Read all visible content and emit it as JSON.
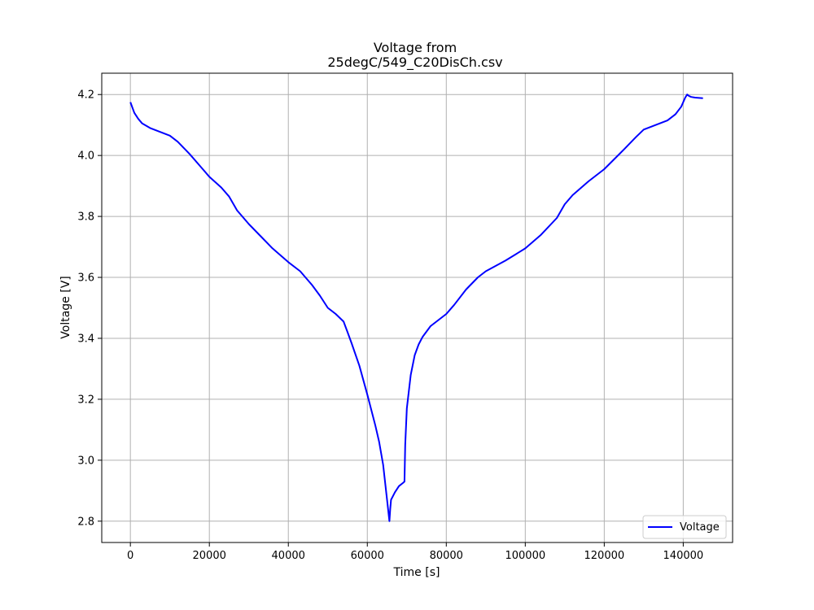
{
  "chart_data": {
    "type": "line",
    "title_line1": "Voltage from",
    "title_line2": "25degC/549_C20DisCh.csv",
    "xlabel": "Time [s]",
    "ylabel": "Voltage [V]",
    "xlim": [
      -7250,
      152500
    ],
    "ylim": [
      2.73,
      4.27
    ],
    "xticks": [
      0,
      20000,
      40000,
      60000,
      80000,
      100000,
      120000,
      140000
    ],
    "xtick_labels": [
      "0",
      "20000",
      "40000",
      "60000",
      "80000",
      "100000",
      "120000",
      "140000"
    ],
    "yticks": [
      2.8,
      3.0,
      3.2,
      3.4,
      3.6,
      3.8,
      4.0,
      4.2
    ],
    "ytick_labels": [
      "2.8",
      "3.0",
      "3.2",
      "3.4",
      "3.6",
      "3.8",
      "4.0",
      "4.2"
    ],
    "grid": true,
    "legend_position": "lower right",
    "series": [
      {
        "name": "Voltage",
        "color": "#0000ff",
        "x": [
          0,
          1000,
          2000,
          3000,
          5000,
          8000,
          10000,
          12000,
          15000,
          18000,
          20000,
          23000,
          25000,
          27000,
          30000,
          33000,
          36000,
          40000,
          43000,
          46000,
          48000,
          50000,
          52000,
          54000,
          55000,
          56000,
          58000,
          60000,
          62000,
          63000,
          64000,
          65000,
          65600,
          65800,
          66000,
          67000,
          68000,
          69000,
          69400,
          69600,
          70000,
          71000,
          72000,
          73000,
          74000,
          76000,
          80000,
          82000,
          85000,
          88000,
          90000,
          95000,
          100000,
          104000,
          108000,
          110000,
          112000,
          116000,
          120000,
          125000,
          128000,
          130000,
          133000,
          136000,
          138000,
          139500,
          140500,
          141000,
          141500,
          142000,
          143000,
          145000
        ],
        "y": [
          4.175,
          4.14,
          4.12,
          4.105,
          4.09,
          4.075,
          4.065,
          4.045,
          4.005,
          3.96,
          3.93,
          3.895,
          3.865,
          3.82,
          3.775,
          3.735,
          3.695,
          3.65,
          3.62,
          3.575,
          3.54,
          3.5,
          3.48,
          3.455,
          3.42,
          3.385,
          3.31,
          3.215,
          3.115,
          3.06,
          2.985,
          2.87,
          2.8,
          2.84,
          2.87,
          2.895,
          2.915,
          2.925,
          2.93,
          3.05,
          3.17,
          3.28,
          3.345,
          3.38,
          3.405,
          3.44,
          3.48,
          3.51,
          3.56,
          3.6,
          3.62,
          3.655,
          3.695,
          3.74,
          3.795,
          3.84,
          3.87,
          3.915,
          3.955,
          4.02,
          4.06,
          4.085,
          4.1,
          4.115,
          4.135,
          4.16,
          4.19,
          4.2,
          4.195,
          4.192,
          4.19,
          4.188
        ]
      }
    ]
  }
}
